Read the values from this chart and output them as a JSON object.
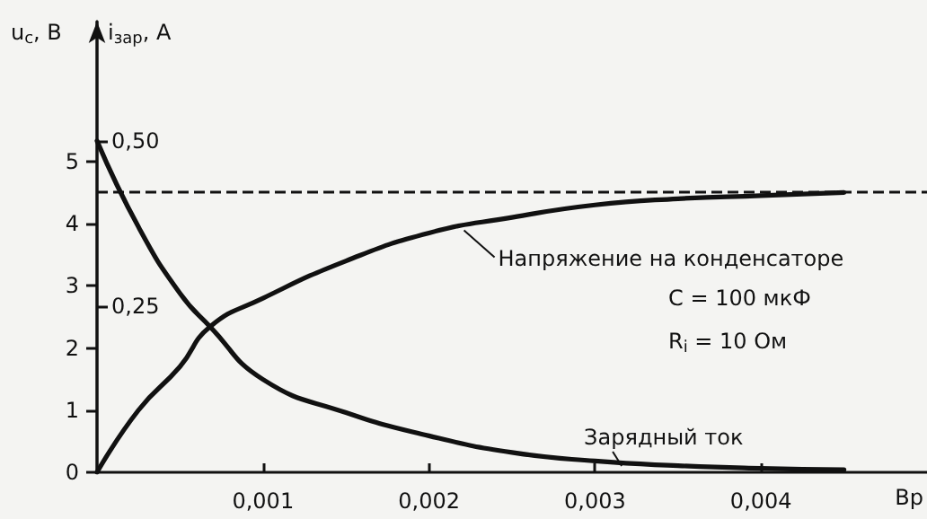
{
  "chart_data": {
    "type": "line",
    "xlabel": "Вр",
    "ylabel": "u$_{c}$, В",
    "y2label": "i$_{зар}$, А",
    "xlim": [
      0,
      0.005
    ],
    "xticks": [
      {
        "value": 0.001,
        "label": "0,001"
      },
      {
        "value": 0.002,
        "label": "0,002"
      },
      {
        "value": 0.003,
        "label": "0,003"
      },
      {
        "value": 0.004,
        "label": "0,004"
      }
    ],
    "ylim": [
      0,
      7.25
    ],
    "yticks": [
      0,
      1,
      2,
      3,
      4,
      5
    ],
    "y2lim": [
      0,
      0.68
    ],
    "y2ticks": [
      {
        "value": 0.25,
        "label": "0,25"
      },
      {
        "value": 0.5,
        "label": "0,50"
      }
    ],
    "series": [
      {
        "color": "#111111",
        "x": [
          0,
          0.00025,
          0.0005,
          0.00068,
          0.001,
          0.0015,
          0.002,
          0.0025,
          0.003,
          0.0035,
          0.004,
          0.0045
        ],
        "values": [
          0,
          1.0,
          1.7,
          2.34,
          2.8,
          3.4,
          3.85,
          4.1,
          4.3,
          4.4,
          4.45,
          4.5
        ]
      },
      {
        "color": "#111111",
        "axis": "y2",
        "x": [
          0,
          0.00025,
          0.0005,
          0.00068,
          0.001,
          0.0015,
          0.002,
          0.0025,
          0.003,
          0.0035,
          0.004,
          0.0045
        ],
        "values": [
          0.5,
          0.37,
          0.27,
          0.22,
          0.14,
          0.09,
          0.055,
          0.03,
          0.017,
          0.01,
          0.006,
          0.004
        ]
      }
    ],
    "ref_lines": [
      {
        "axis": "y",
        "value": 4.5,
        "line_style": "dashed",
        "color": "#111111"
      }
    ],
    "annotations": [
      {
        "text": "Напряжение на конденсаторе",
        "x": 0.0022,
        "y": 3.95
      },
      {
        "text": "Зарядный ток",
        "x": 0.00315,
        "y": 0.015
      },
      "C = 100 мкФ",
      "R$_{i}$ = 10 Ом"
    ],
    "marker": "none",
    "line_style": "solid",
    "grid": false
  }
}
